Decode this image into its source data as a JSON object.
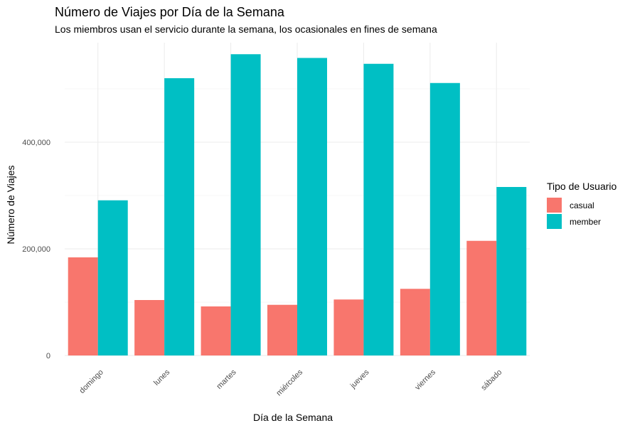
{
  "chart_data": {
    "type": "bar",
    "title": "Número de Viajes por Día de la Semana",
    "subtitle": "Los miembros usan el servicio durante la semana, los ocasionales en fines de semana",
    "xlabel": "Día de la Semana",
    "ylabel": "Número de Viajes",
    "categories": [
      "domingo",
      "lunes",
      "martes",
      "miércoles",
      "jueves",
      "viernes",
      "sábado"
    ],
    "series": [
      {
        "name": "casual",
        "color": "#F8766D",
        "values": [
          184000,
          104000,
          92000,
          95000,
          105000,
          125000,
          215000
        ]
      },
      {
        "name": "member",
        "color": "#00BFC4",
        "values": [
          291000,
          520000,
          565000,
          558000,
          547000,
          511000,
          316000
        ]
      }
    ],
    "ylim": [
      0,
      565000
    ],
    "y_ticks": [
      0,
      200000,
      400000
    ],
    "y_tick_labels": [
      "0",
      "200,000",
      "400,000"
    ],
    "legend": {
      "title": "Tipo de Usuario",
      "position": "right"
    },
    "grid": true
  }
}
